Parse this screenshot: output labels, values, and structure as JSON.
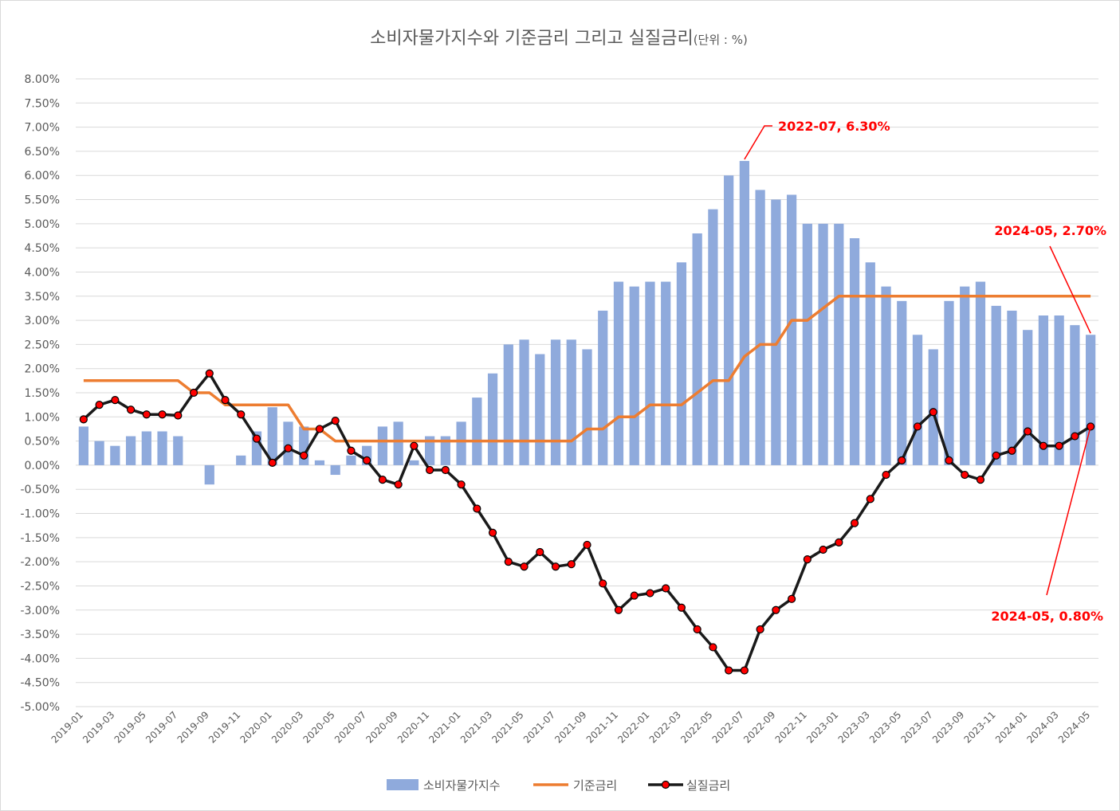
{
  "chart_data": {
    "type": "bar+line",
    "title": "소비자물가지수와 기준금리 그리고 실질금리",
    "subtitle": "(단위 : %)",
    "y_ticks": [
      "8.00%",
      "7.50%",
      "7.00%",
      "6.50%",
      "6.00%",
      "5.50%",
      "5.00%",
      "4.50%",
      "4.00%",
      "3.50%",
      "3.00%",
      "2.50%",
      "2.00%",
      "1.50%",
      "1.00%",
      "0.50%",
      "0.00%",
      "-0.50%",
      "-1.00%",
      "-1.50%",
      "-2.00%",
      "-2.50%",
      "-3.00%",
      "-3.50%",
      "-4.00%",
      "-4.50%",
      "-5.00%"
    ],
    "ylim": [
      -5,
      8
    ],
    "grid": true,
    "legend_position": "bottom",
    "x_tick_labels": [
      "2019-01",
      "2019-03",
      "2019-05",
      "2019-07",
      "2019-09",
      "2019-11",
      "2020-01",
      "2020-03",
      "2020-05",
      "2020-07",
      "2020-09",
      "2020-11",
      "2021-01",
      "2021-03",
      "2021-05",
      "2021-07",
      "2021-09",
      "2021-11",
      "2022-01",
      "2022-03",
      "2022-05",
      "2022-07",
      "2022-09",
      "2022-11",
      "2023-01",
      "2023-03",
      "2023-05",
      "2023-07",
      "2023-09",
      "2023-11",
      "2024-01",
      "2024-03",
      "2024-05"
    ],
    "categories": [
      "2019-01",
      "2019-02",
      "2019-03",
      "2019-04",
      "2019-05",
      "2019-06",
      "2019-07",
      "2019-08",
      "2019-09",
      "2019-10",
      "2019-11",
      "2019-12",
      "2020-01",
      "2020-02",
      "2020-03",
      "2020-04",
      "2020-05",
      "2020-06",
      "2020-07",
      "2020-08",
      "2020-09",
      "2020-10",
      "2020-11",
      "2020-12",
      "2021-01",
      "2021-02",
      "2021-03",
      "2021-04",
      "2021-05",
      "2021-06",
      "2021-07",
      "2021-08",
      "2021-09",
      "2021-10",
      "2021-11",
      "2021-12",
      "2022-01",
      "2022-02",
      "2022-03",
      "2022-04",
      "2022-05",
      "2022-06",
      "2022-07",
      "2022-08",
      "2022-09",
      "2022-10",
      "2022-11",
      "2022-12",
      "2023-01",
      "2023-02",
      "2023-03",
      "2023-04",
      "2023-05",
      "2023-06",
      "2023-07",
      "2023-08",
      "2023-09",
      "2023-10",
      "2023-11",
      "2023-12",
      "2024-01",
      "2024-02",
      "2024-03",
      "2024-04",
      "2024-05"
    ],
    "series": [
      {
        "name": "소비자물가지수",
        "kind": "bar",
        "color": "#8faadc",
        "values": [
          0.8,
          0.5,
          0.4,
          0.6,
          0.7,
          0.7,
          0.6,
          0.0,
          -0.4,
          0.0,
          0.2,
          0.7,
          1.2,
          0.9,
          0.8,
          0.1,
          -0.2,
          0.2,
          0.4,
          0.8,
          0.9,
          0.1,
          0.6,
          0.6,
          0.9,
          1.4,
          1.9,
          2.5,
          2.6,
          2.3,
          2.6,
          2.6,
          2.4,
          3.2,
          3.8,
          3.7,
          3.8,
          3.8,
          4.2,
          4.8,
          5.3,
          6.0,
          6.3,
          5.7,
          5.5,
          5.6,
          5.0,
          5.0,
          5.0,
          4.7,
          4.2,
          3.7,
          3.4,
          2.7,
          2.4,
          3.4,
          3.7,
          3.8,
          3.3,
          3.2,
          2.8,
          3.1,
          3.1,
          2.9,
          2.7
        ]
      },
      {
        "name": "기준금리",
        "kind": "line",
        "color": "#ed7d31",
        "values": [
          1.75,
          1.75,
          1.75,
          1.75,
          1.75,
          1.75,
          1.75,
          1.5,
          1.5,
          1.25,
          1.25,
          1.25,
          1.25,
          1.25,
          0.75,
          0.75,
          0.5,
          0.5,
          0.5,
          0.5,
          0.5,
          0.5,
          0.5,
          0.5,
          0.5,
          0.5,
          0.5,
          0.5,
          0.5,
          0.5,
          0.5,
          0.5,
          0.75,
          0.75,
          1.0,
          1.0,
          1.25,
          1.25,
          1.25,
          1.5,
          1.75,
          1.75,
          2.25,
          2.5,
          2.5,
          3.0,
          3.0,
          3.25,
          3.5,
          3.5,
          3.5,
          3.5,
          3.5,
          3.5,
          3.5,
          3.5,
          3.5,
          3.5,
          3.5,
          3.5,
          3.5,
          3.5,
          3.5,
          3.5,
          3.5
        ]
      },
      {
        "name": "실질금리",
        "kind": "line-marker",
        "color": "#1a1a1a",
        "marker_color": "#ff0000",
        "values": [
          0.95,
          1.25,
          1.35,
          1.15,
          1.05,
          1.05,
          1.03,
          1.5,
          1.9,
          1.35,
          1.05,
          0.55,
          0.05,
          0.35,
          0.2,
          0.75,
          0.92,
          0.3,
          0.1,
          -0.3,
          -0.4,
          0.4,
          -0.1,
          -0.1,
          -0.4,
          -0.9,
          -1.4,
          -2.0,
          -2.1,
          -1.8,
          -2.1,
          -2.05,
          -1.65,
          -2.45,
          -3.0,
          -2.7,
          -2.65,
          -2.55,
          -2.95,
          -3.4,
          -3.77,
          -4.25,
          -4.25,
          -3.4,
          -3.0,
          -2.77,
          -1.95,
          -1.75,
          -1.6,
          -1.2,
          -0.7,
          -0.2,
          0.1,
          0.8,
          1.1,
          0.1,
          -0.2,
          -0.3,
          0.2,
          0.3,
          0.7,
          0.4,
          0.4,
          0.6,
          0.8
        ]
      }
    ],
    "annotations": [
      {
        "text": "2022-07, 6.30%",
        "series": "소비자물가지수",
        "category": "2022-07",
        "value": 6.3
      },
      {
        "text": "2024-05, 2.70%",
        "series": "소비자물가지수",
        "category": "2024-05",
        "value": 2.7
      },
      {
        "text": "2024-05, 0.80%",
        "series": "실질금리",
        "category": "2024-05",
        "value": 0.8
      }
    ]
  }
}
